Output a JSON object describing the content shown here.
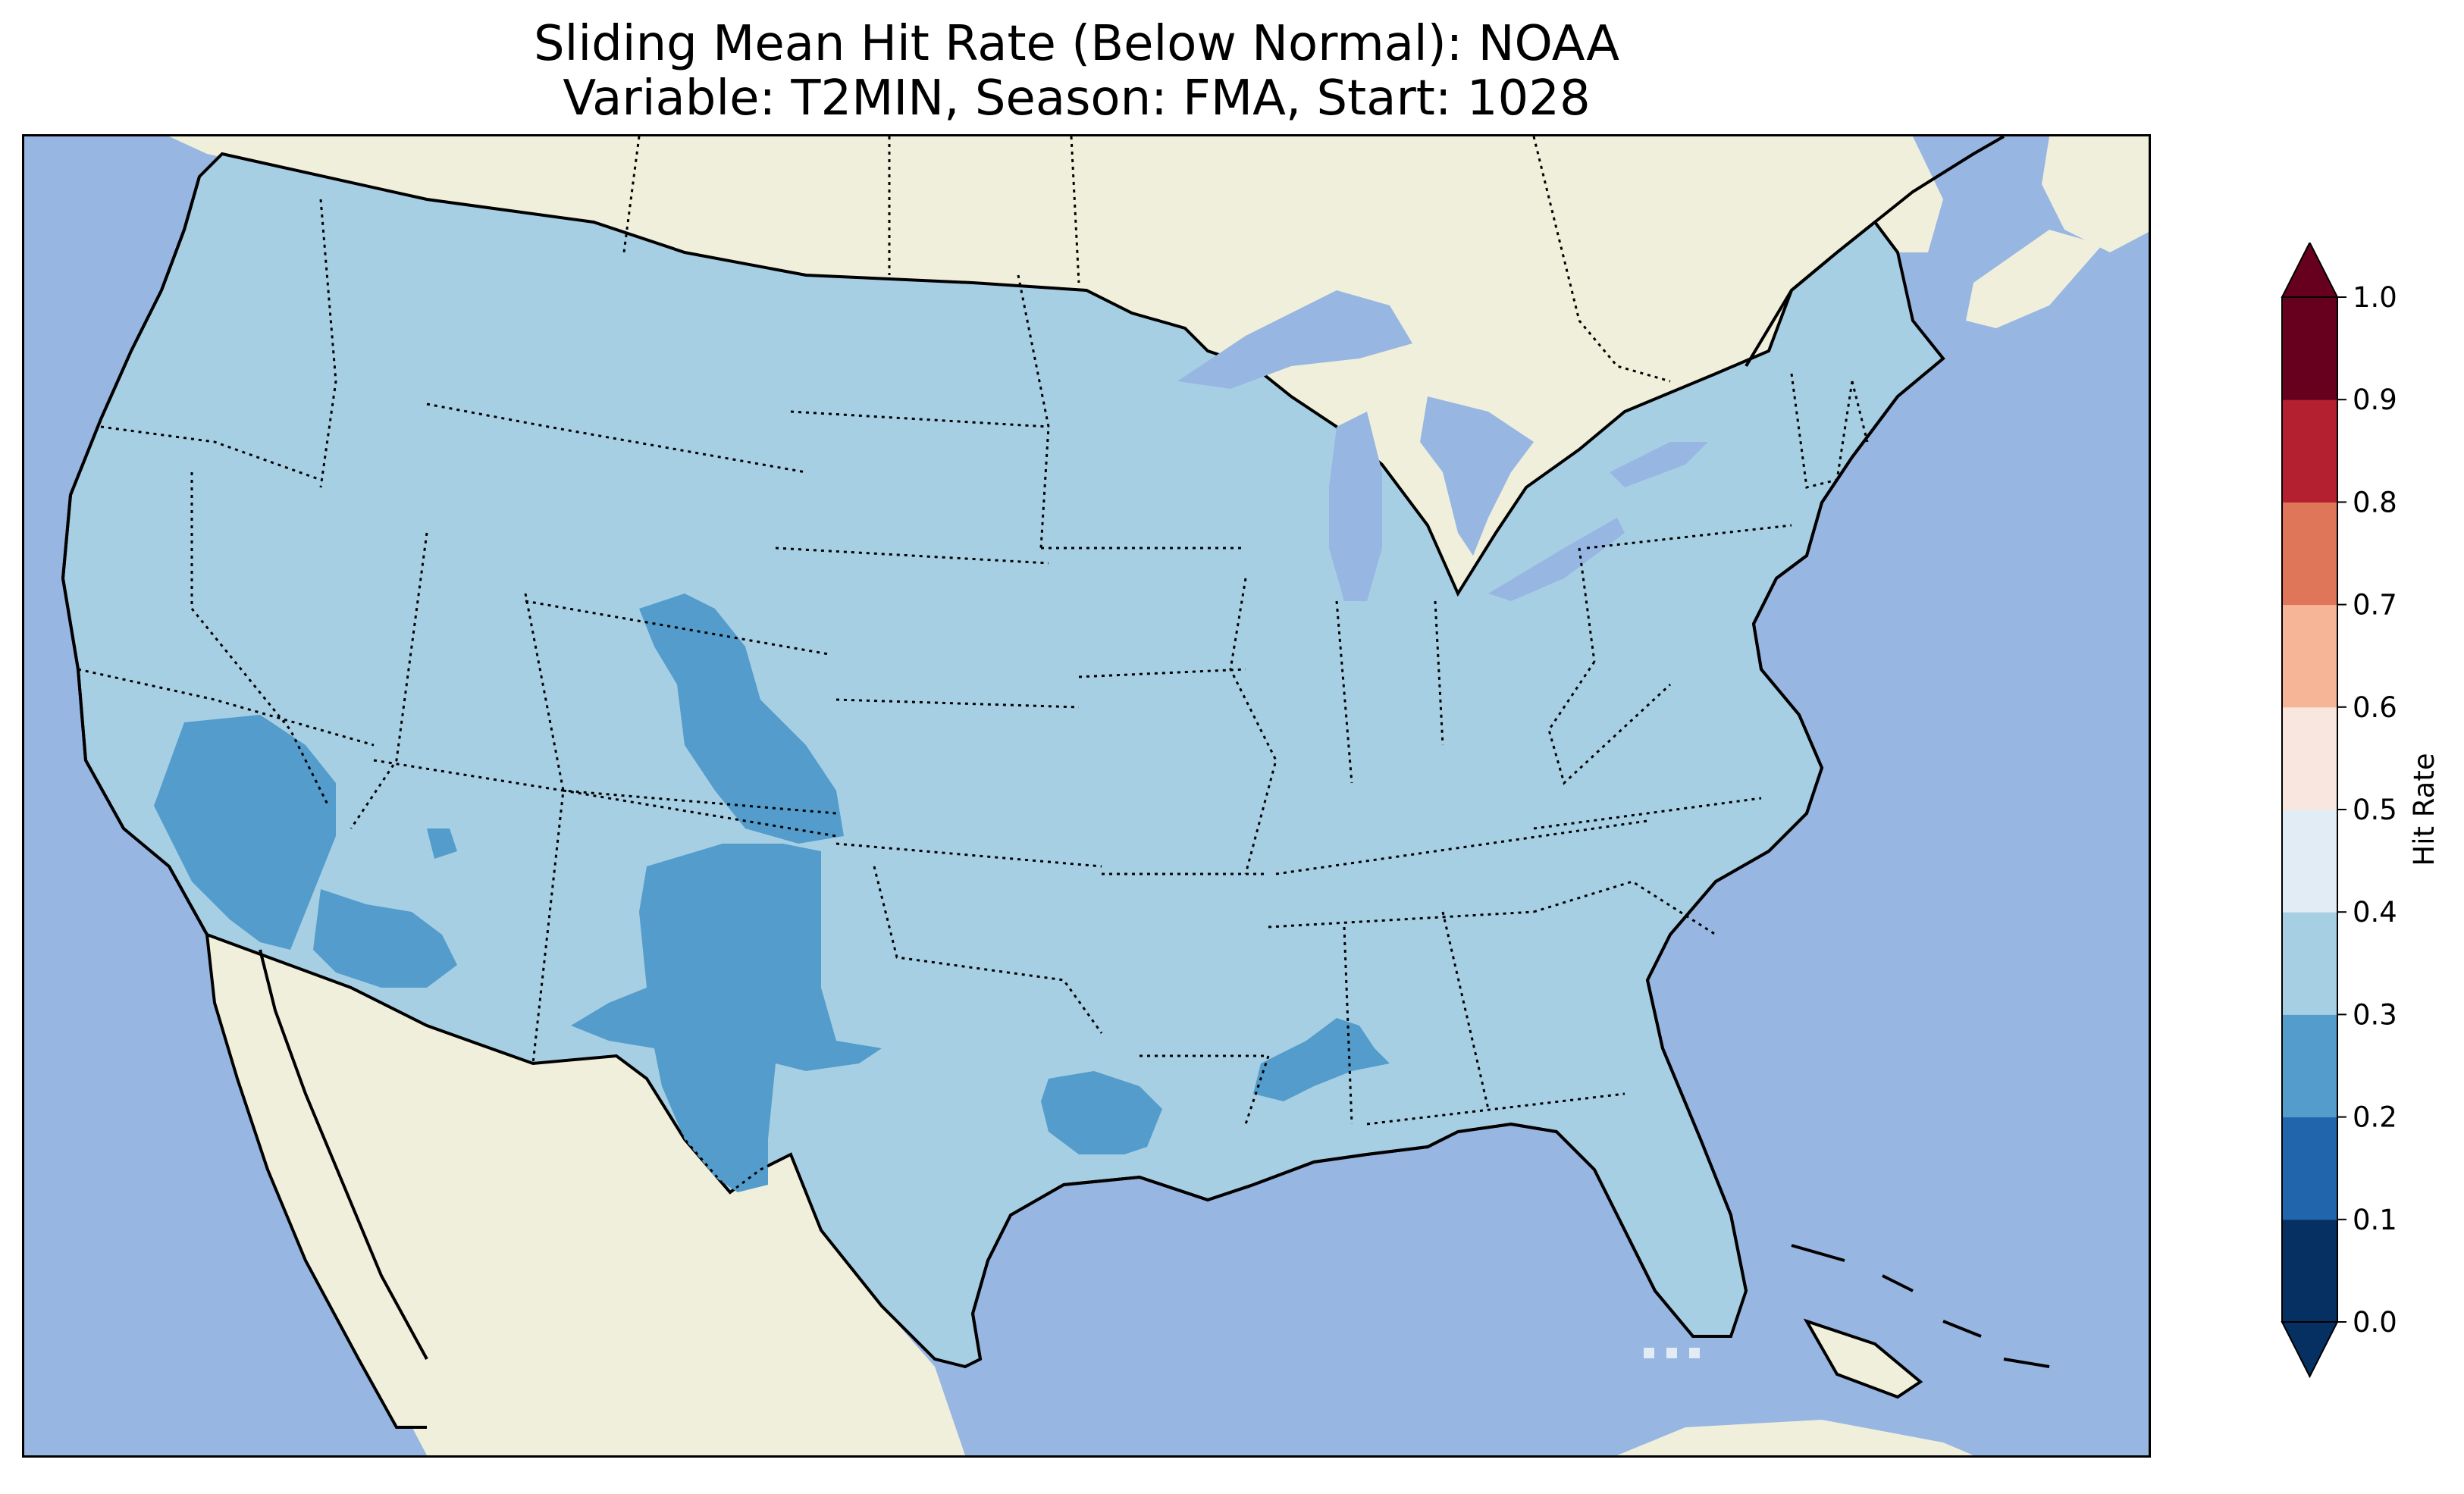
{
  "title": {
    "line1": "Sliding Mean Hit Rate (Below Normal): NOAA",
    "line2": "Variable: T2MIN, Season: FMA, Start: 1028"
  },
  "map": {
    "region": "Contiguous United States",
    "ocean_color": "#97b6e1",
    "land_color": "#efefdb",
    "coastline_color": "#000000",
    "state_border_style": "dotted"
  },
  "colorbar": {
    "label": "Hit Rate",
    "ticks": [
      "0.0",
      "0.1",
      "0.2",
      "0.3",
      "0.4",
      "0.5",
      "0.6",
      "0.7",
      "0.8",
      "0.9",
      "1.0"
    ],
    "colors": [
      "#053061",
      "#2166ac",
      "#4393c3",
      "#92c5de",
      "#d1e5f0",
      "#f7f7f7",
      "#fddbc7",
      "#f4a582",
      "#d6604d",
      "#b2182b",
      "#67001f"
    ],
    "extend": "both"
  },
  "chart_data": {
    "type": "heatmap",
    "title": "Sliding Mean Hit Rate (Below Normal): NOAA\nVariable: T2MIN, Season: FMA, Start: 1028",
    "colorbar_label": "Hit Rate",
    "value_range": [
      0.0,
      1.0
    ],
    "bins": [
      {
        "range": [
          0.0,
          0.1
        ],
        "color": "#053061"
      },
      {
        "range": [
          0.1,
          0.2
        ],
        "color": "#2166ac"
      },
      {
        "range": [
          0.2,
          0.3
        ],
        "color": "#539ccb"
      },
      {
        "range": [
          0.3,
          0.4
        ],
        "color": "#a7cfe4"
      },
      {
        "range": [
          0.4,
          0.5
        ],
        "color": "#e1ecf4"
      },
      {
        "range": [
          0.5,
          0.6
        ],
        "color": "#f9e7df"
      },
      {
        "range": [
          0.6,
          0.7
        ],
        "color": "#f6b596"
      },
      {
        "range": [
          0.7,
          0.8
        ],
        "color": "#df7559"
      },
      {
        "range": [
          0.8,
          0.9
        ],
        "color": "#b52030"
      },
      {
        "range": [
          0.9,
          1.0
        ],
        "color": "#67001f"
      }
    ],
    "dominant_bin": [
      0.3,
      0.4
    ],
    "regions_in_bin_0.2_0.3": [
      "Southern California / Nevada",
      "Southwestern Arizona",
      "Central Colorado",
      "New Mexico",
      "West Texas",
      "East Texas",
      "Central Mississippi / Alabama"
    ],
    "regions_in_bin_0.4_0.5": [
      "South Florida (isolated cells)"
    ]
  }
}
